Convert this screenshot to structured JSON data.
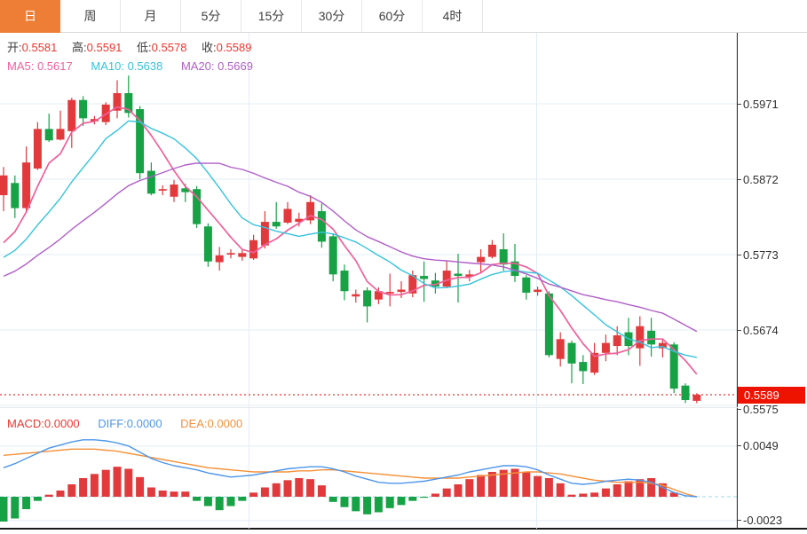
{
  "toolbar": {
    "tabs": [
      {
        "label": "日",
        "active": true
      },
      {
        "label": "周",
        "active": false
      },
      {
        "label": "月",
        "active": false
      },
      {
        "label": "5分",
        "active": false
      },
      {
        "label": "15分",
        "active": false
      },
      {
        "label": "30分",
        "active": false
      },
      {
        "label": "60分",
        "active": false
      },
      {
        "label": "4时",
        "active": false
      }
    ]
  },
  "legend": {
    "ohlc": [
      {
        "label": "开:",
        "value": "0.5581"
      },
      {
        "label": "高:",
        "value": "0.5591"
      },
      {
        "label": "低:",
        "value": "0.5578"
      },
      {
        "label": "收:",
        "value": "0.5589"
      }
    ],
    "ma": [
      {
        "label": "MA5:",
        "value": "0.5617",
        "color_key": "ma5"
      },
      {
        "label": "MA10:",
        "value": "0.5638",
        "color_key": "ma10"
      },
      {
        "label": "MA20:",
        "value": "0.5669",
        "color_key": "ma20"
      }
    ],
    "macd": [
      {
        "label": "MACD:",
        "value": "0.0000",
        "color_key": "up_text"
      },
      {
        "label": "DIFF:",
        "value": "0.0000",
        "color_key": "diff"
      },
      {
        "label": "DEA:",
        "value": "0.0000",
        "color_key": "dea"
      }
    ]
  },
  "price_axis": {
    "ticks": [
      {
        "label": "0.5971",
        "price": 0.5971
      },
      {
        "label": "0.5872",
        "price": 0.5872
      },
      {
        "label": "0.5773",
        "price": 0.5773
      },
      {
        "label": "0.5674",
        "price": 0.5674
      },
      {
        "label": "0.5575",
        "price": 0.5575,
        "pinned_bottom": true
      }
    ],
    "current": {
      "label": "0.5589",
      "price": 0.5589
    }
  },
  "macd_axis": {
    "ticks": [
      {
        "label": "0.0049",
        "value": 0.0049
      },
      {
        "label": "-0.0023",
        "value": -0.0023
      }
    ]
  },
  "colors": {
    "up": "#e23a3c",
    "down": "#17a246",
    "up_text": "#ef362e",
    "label_text": "#3c3c3c",
    "ma5": "#f0609a",
    "ma10": "#35c3dd",
    "ma20": "#b05ec8",
    "diff": "#4d96ea",
    "dea": "#f5913a",
    "grid": "#e3ecf5",
    "axis_line": "#333333",
    "zero_dash": "#9fd8ea",
    "current_line": "#f25555",
    "flag_bg": "#ee1300",
    "tab_active_bg": "#ee7e35",
    "tab_text": "#3f3f3f"
  },
  "chart_data": [
    {
      "type": "candlestick",
      "panel": "main",
      "ylabel_side": "right",
      "price_ticks": [
        0.5971,
        0.5872,
        0.5773,
        0.5674,
        0.5575
      ],
      "ylim": [
        0.55727,
        0.60642
      ],
      "current_price": 0.5589,
      "grid": true,
      "vertical_grid_x": [
        280.5,
        604.5
      ],
      "ma_periods": [
        5,
        10,
        20
      ],
      "ma_warmup_closes_estimated": [
        0.5698,
        0.5702,
        0.5706,
        0.571,
        0.5714,
        0.5718,
        0.5722,
        0.5726,
        0.573,
        0.5734,
        0.5738,
        0.5742,
        0.5746,
        0.575,
        0.5754,
        0.5758,
        0.5762,
        0.5765,
        0.5768,
        0.5771
      ],
      "candles": {
        "format": [
          "open",
          "close",
          "high",
          "low"
        ],
        "values": [
          [
            0.5851,
            0.5877,
            0.5888,
            0.583
          ],
          [
            0.5867,
            0.5834,
            0.5877,
            0.5821
          ],
          [
            0.5834,
            0.5894,
            0.5915,
            0.5828
          ],
          [
            0.5886,
            0.5938,
            0.5947,
            0.5884
          ],
          [
            0.5938,
            0.5923,
            0.5958,
            0.5921
          ],
          [
            0.5924,
            0.5938,
            0.5962,
            0.5923
          ],
          [
            0.5935,
            0.5976,
            0.5979,
            0.5913
          ],
          [
            0.5976,
            0.5952,
            0.5981,
            0.5942
          ],
          [
            0.5948,
            0.5951,
            0.5955,
            0.5944
          ],
          [
            0.5947,
            0.597,
            0.5973,
            0.5943
          ],
          [
            0.5962,
            0.5985,
            0.6002,
            0.5952
          ],
          [
            0.5985,
            0.5959,
            0.6008,
            0.5953
          ],
          [
            0.5964,
            0.588,
            0.5968,
            0.5872
          ],
          [
            0.5883,
            0.5853,
            0.5894,
            0.5851
          ],
          [
            0.5857,
            0.5859,
            0.5864,
            0.5851
          ],
          [
            0.5849,
            0.5865,
            0.5871,
            0.5842
          ],
          [
            0.586,
            0.5855,
            0.5866,
            0.5842
          ],
          [
            0.5859,
            0.5813,
            0.5863,
            0.5808
          ],
          [
            0.581,
            0.5764,
            0.5814,
            0.5757
          ],
          [
            0.5763,
            0.5772,
            0.5783,
            0.5752
          ],
          [
            0.5773,
            0.5775,
            0.578,
            0.5768
          ],
          [
            0.577,
            0.5775,
            0.578,
            0.5765
          ],
          [
            0.5768,
            0.5792,
            0.5799,
            0.5766
          ],
          [
            0.5785,
            0.5816,
            0.583,
            0.5781
          ],
          [
            0.5816,
            0.581,
            0.5842,
            0.5807
          ],
          [
            0.5815,
            0.5833,
            0.5842,
            0.5813
          ],
          [
            0.5816,
            0.582,
            0.5828,
            0.581
          ],
          [
            0.5818,
            0.5842,
            0.5851,
            0.5813
          ],
          [
            0.583,
            0.579,
            0.584,
            0.5782
          ],
          [
            0.5797,
            0.5747,
            0.5801,
            0.5738
          ],
          [
            0.5752,
            0.5725,
            0.576,
            0.5713
          ],
          [
            0.5718,
            0.5721,
            0.5727,
            0.571
          ],
          [
            0.5726,
            0.5705,
            0.573,
            0.5684
          ],
          [
            0.5714,
            0.5725,
            0.573,
            0.5708
          ],
          [
            0.5722,
            0.5724,
            0.5748,
            0.5705
          ],
          [
            0.5724,
            0.5727,
            0.5738,
            0.5716
          ],
          [
            0.5722,
            0.5746,
            0.5752,
            0.5717
          ],
          [
            0.5745,
            0.5741,
            0.5764,
            0.5711
          ],
          [
            0.5739,
            0.5731,
            0.5749,
            0.5722
          ],
          [
            0.5731,
            0.5752,
            0.5764,
            0.5729
          ],
          [
            0.5748,
            0.5745,
            0.5774,
            0.571
          ],
          [
            0.5744,
            0.5747,
            0.5753,
            0.5738
          ],
          [
            0.5763,
            0.577,
            0.578,
            0.5749
          ],
          [
            0.577,
            0.5786,
            0.5792,
            0.5768
          ],
          [
            0.578,
            0.576,
            0.5801,
            0.5752
          ],
          [
            0.5764,
            0.5745,
            0.5787,
            0.5737
          ],
          [
            0.5743,
            0.5723,
            0.5746,
            0.5714
          ],
          [
            0.5724,
            0.5727,
            0.5731,
            0.5719
          ],
          [
            0.5722,
            0.5641,
            0.5725,
            0.5638
          ],
          [
            0.5636,
            0.5662,
            0.5671,
            0.5626
          ],
          [
            0.5657,
            0.563,
            0.566,
            0.5604
          ],
          [
            0.5632,
            0.562,
            0.5641,
            0.5603
          ],
          [
            0.5618,
            0.5644,
            0.5657,
            0.5615
          ],
          [
            0.5644,
            0.5657,
            0.5668,
            0.5633
          ],
          [
            0.5653,
            0.5667,
            0.5679,
            0.5641
          ],
          [
            0.5671,
            0.5653,
            0.569,
            0.5641
          ],
          [
            0.565,
            0.5679,
            0.5692,
            0.5627
          ],
          [
            0.5673,
            0.5655,
            0.569,
            0.5639
          ],
          [
            0.565,
            0.5657,
            0.5663,
            0.5638
          ],
          [
            0.5655,
            0.5597,
            0.5658,
            0.5591
          ],
          [
            0.5601,
            0.5582,
            0.5604,
            0.5578
          ],
          [
            0.5581,
            0.5589,
            0.5591,
            0.5578
          ]
        ]
      }
    },
    {
      "type": "macd",
      "panel": "bottom",
      "y_ticks": [
        0.0049,
        -0.0023
      ],
      "grid": true,
      "vertical_grid_x": [
        280.5,
        604.5
      ],
      "histogram": [
        -0.0024,
        -0.0021,
        -0.0012,
        -0.0004,
        0.0002,
        0.0006,
        0.0012,
        0.0018,
        0.0022,
        0.0026,
        0.0029,
        0.0027,
        0.0019,
        0.0009,
        0.0006,
        0.0005,
        0.0005,
        -0.0004,
        -0.0009,
        -0.0013,
        -0.0009,
        -0.0004,
        0.0004,
        0.0009,
        0.0013,
        0.0016,
        0.0018,
        0.0017,
        0.0011,
        -0.0005,
        -0.001,
        -0.0014,
        -0.0017,
        -0.0015,
        -0.0011,
        -0.0008,
        -0.0004,
        -0.0001,
        0.0003,
        0.0008,
        0.0012,
        0.0017,
        0.0021,
        0.0024,
        0.0026,
        0.0027,
        0.0024,
        0.002,
        0.0018,
        0.0013,
        0.0002,
        0.0003,
        0.0004,
        0.0008,
        0.0012,
        0.0015,
        0.0017,
        0.0018,
        0.0013,
        0.0004,
        0.0,
        0.0
      ],
      "diff": [
        0.0028,
        0.0032,
        0.0037,
        0.0042,
        0.0047,
        0.005,
        0.0053,
        0.0055,
        0.0055,
        0.0054,
        0.0052,
        0.0049,
        0.0043,
        0.0037,
        0.0033,
        0.003,
        0.0028,
        0.0026,
        0.0023,
        0.0021,
        0.0019,
        0.002,
        0.0021,
        0.0023,
        0.0025,
        0.0027,
        0.0028,
        0.0029,
        0.0029,
        0.0027,
        0.0024,
        0.002,
        0.0017,
        0.0014,
        0.0013,
        0.0013,
        0.0014,
        0.0015,
        0.0017,
        0.0019,
        0.0021,
        0.0024,
        0.0026,
        0.0028,
        0.003,
        0.003,
        0.0029,
        0.0026,
        0.0021,
        0.0017,
        0.0013,
        0.0012,
        0.0013,
        0.0015,
        0.0016,
        0.0017,
        0.0016,
        0.0014,
        0.0009,
        0.0004,
        0.0001,
        0.0
      ],
      "dea": [
        0.004,
        0.0041,
        0.0042,
        0.0043,
        0.0044,
        0.0045,
        0.0046,
        0.0046,
        0.0046,
        0.0045,
        0.0044,
        0.0042,
        0.004,
        0.0038,
        0.0036,
        0.0034,
        0.0032,
        0.003,
        0.0028,
        0.0027,
        0.0026,
        0.0025,
        0.0024,
        0.0024,
        0.0024,
        0.0024,
        0.0025,
        0.0025,
        0.0026,
        0.0026,
        0.0025,
        0.0024,
        0.0023,
        0.0022,
        0.0021,
        0.002,
        0.0019,
        0.0018,
        0.0018,
        0.0018,
        0.0018,
        0.0019,
        0.002,
        0.0021,
        0.0022,
        0.0023,
        0.0024,
        0.0024,
        0.0023,
        0.0022,
        0.002,
        0.0018,
        0.0016,
        0.0015,
        0.0014,
        0.0014,
        0.0014,
        0.0013,
        0.0011,
        0.0007,
        0.0003,
        0.0
      ]
    }
  ]
}
